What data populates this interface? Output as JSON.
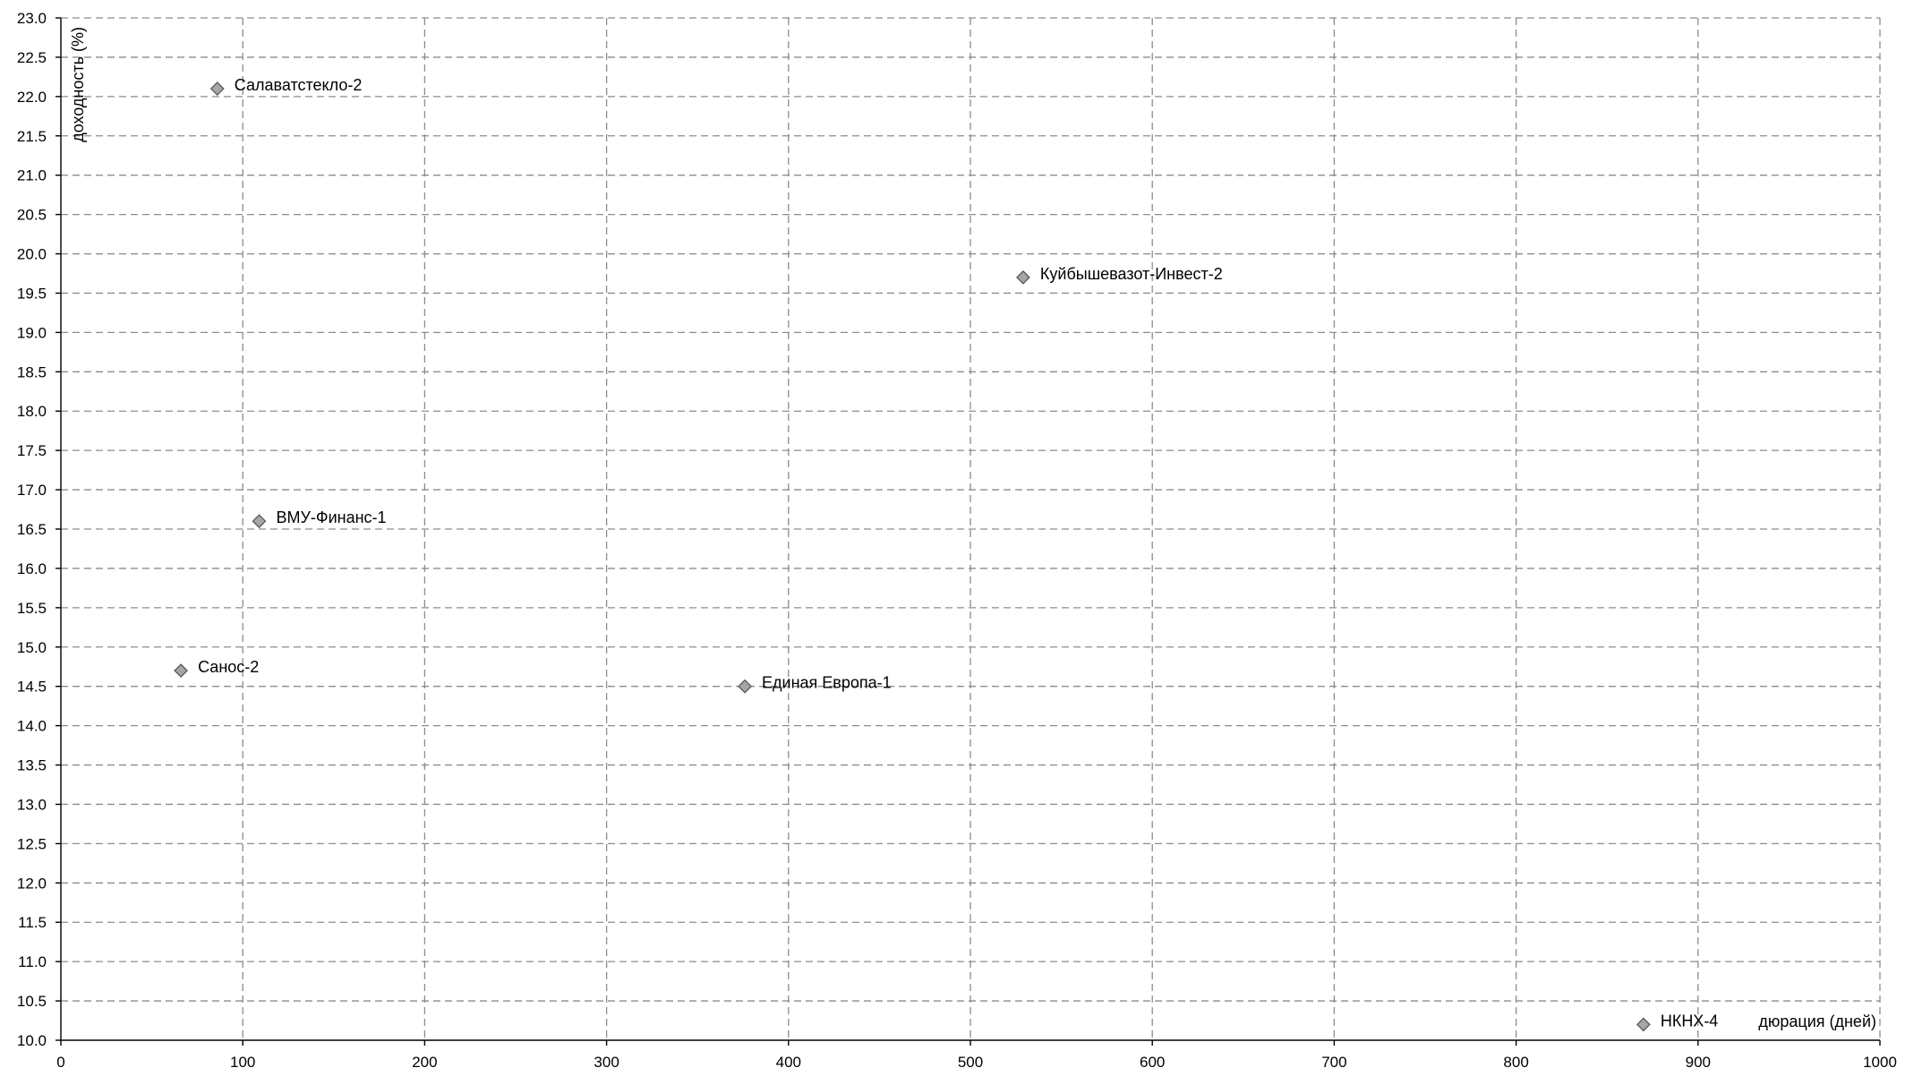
{
  "chart_data": {
    "type": "scatter",
    "title": "",
    "xlabel": "дюрация (дней)",
    "ylabel": "доходность (%)",
    "xlim": [
      0,
      1000
    ],
    "ylim": [
      10.0,
      23.0
    ],
    "x_ticks": [
      0,
      100,
      200,
      300,
      400,
      500,
      600,
      700,
      800,
      900,
      1000
    ],
    "y_ticks": [
      "10.0",
      "10.5",
      "11.0",
      "11.5",
      "12.0",
      "12.5",
      "13.0",
      "13.5",
      "14.0",
      "14.5",
      "15.0",
      "15.5",
      "16.0",
      "16.5",
      "17.0",
      "17.5",
      "18.0",
      "18.5",
      "19.0",
      "19.5",
      "20.0",
      "20.5",
      "21.0",
      "21.5",
      "22.0",
      "22.5",
      "23.0"
    ],
    "grid": true,
    "marker": "diamond",
    "marker_color": "#a6a6a6",
    "marker_edge_color": "#595959",
    "points": [
      {
        "label": "Салаватстекло-2",
        "x": 86,
        "y": 22.1
      },
      {
        "label": "Куйбышевазот-Инвест-2",
        "x": 529,
        "y": 19.7
      },
      {
        "label": "ВМУ-Финанс-1",
        "x": 109,
        "y": 16.6
      },
      {
        "label": "Санос-2",
        "x": 66,
        "y": 14.7
      },
      {
        "label": "Единая Европа-1",
        "x": 376,
        "y": 14.5
      },
      {
        "label": "НКНХ-4",
        "x": 870,
        "y": 10.2
      }
    ]
  }
}
